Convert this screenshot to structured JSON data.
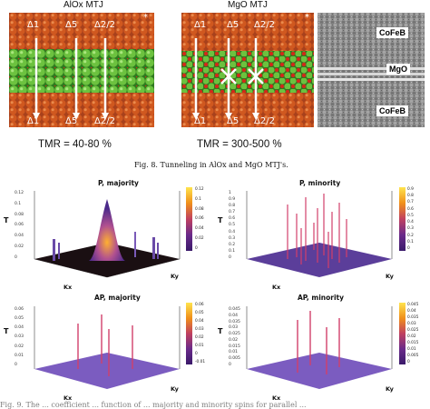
{
  "top": {
    "alox_title": "AlOx MTJ",
    "mgo_title": "MgO MTJ",
    "asterisk": "*",
    "deltas_top": [
      "Δ1",
      "Δ5",
      "Δ2/2"
    ],
    "deltas_bottom": [
      "Δ1",
      "Δ5",
      "Δ2/2"
    ],
    "tmr_alox": "TMR = 40-80 %",
    "tmr_mgo": "TMR = 300-500 %",
    "tem_labels": [
      "CoFeB",
      "MgO",
      "CoFeB"
    ]
  },
  "caption": "Fig. 8.   Tunneling in AlOx and MgO MTJ's.",
  "plots": [
    {
      "title": "P, majority",
      "zlabel": "T",
      "xlabel": "Kx",
      "ylabel": "Ky",
      "zticks": [
        "0.12",
        "0.1",
        "0.08",
        "0.06",
        "0.04",
        "0.02",
        "0"
      ],
      "cbar_ticks": [
        "0.12",
        "0.1",
        "0.08",
        "0.06",
        "0.04",
        "0.02",
        "0"
      ]
    },
    {
      "title": "P, minority",
      "zlabel": "T",
      "xlabel": "Kx",
      "ylabel": "Ky",
      "zticks": [
        "1",
        "0.9",
        "0.8",
        "0.7",
        "0.6",
        "0.5",
        "0.4",
        "0.3",
        "0.2",
        "0.1",
        "0"
      ],
      "cbar_ticks": [
        "0.9",
        "0.8",
        "0.7",
        "0.6",
        "0.5",
        "0.4",
        "0.3",
        "0.2",
        "0.1",
        "0"
      ]
    },
    {
      "title": "AP, majority",
      "zlabel": "T",
      "xlabel": "Kx",
      "ylabel": "Ky",
      "zticks": [
        "0.06",
        "0.05",
        "0.04",
        "0.03",
        "0.02",
        "0.01",
        "0"
      ],
      "cbar_ticks": [
        "0.06",
        "0.05",
        "0.04",
        "0.03",
        "0.02",
        "0.01",
        "0",
        "-0.01"
      ]
    },
    {
      "title": "AP, minority",
      "zlabel": "T",
      "xlabel": "Kx",
      "ylabel": "Ky",
      "zticks": [
        "0.045",
        "0.04",
        "0.035",
        "0.03",
        "0.025",
        "0.02",
        "0.015",
        "0.01",
        "0.005",
        "0"
      ],
      "cbar_ticks": [
        "0.045",
        "0.04",
        "0.035",
        "0.03",
        "0.025",
        "0.02",
        "0.015",
        "0.01",
        "0.005",
        "0"
      ]
    }
  ],
  "bottom_caption_fragment": "Fig. 9.   The ... coefficient ... function of ... majority and minority spins for parallel ..."
}
